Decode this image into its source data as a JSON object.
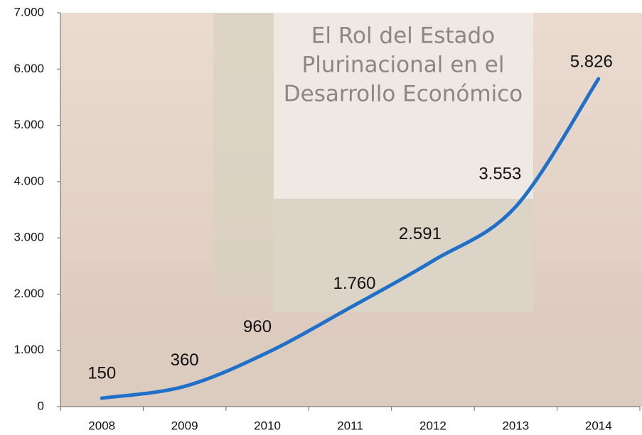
{
  "chart_data": {
    "type": "line",
    "categories": [
      "2008",
      "2009",
      "2010",
      "2011",
      "2012",
      "2013",
      "2014"
    ],
    "values": [
      150,
      360,
      960,
      1760,
      2591,
      3553,
      5826
    ],
    "value_labels": [
      "150",
      "360",
      "960",
      "1.760",
      "2.591",
      "3.553",
      "5.826"
    ],
    "color": "#1f70c8",
    "ylim": [
      0,
      7000
    ],
    "yticks": [
      0,
      {
        "value": 1000,
        "label": "1.000"
      },
      {
        "value": 2000,
        "label": "2.000"
      },
      {
        "value": 3000,
        "label": "3.000"
      },
      {
        "value": 4000,
        "label": "4.000"
      },
      {
        "value": 5000,
        "label": "5.000"
      },
      {
        "value": 6000,
        "label": "6.000"
      },
      {
        "value": 7000,
        "label": "7.000"
      }
    ],
    "grid": false,
    "annotations": [
      "El Rol del Estado",
      "Plurinacional en el",
      "Desarrollo Económico"
    ]
  }
}
